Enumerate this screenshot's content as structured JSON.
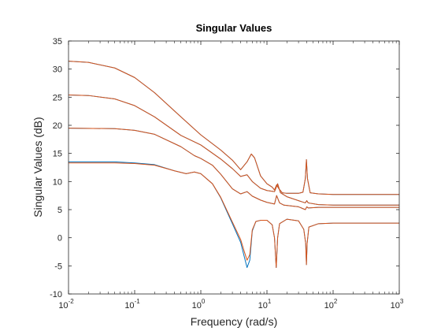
{
  "chart_data": {
    "type": "line",
    "title": "Singular Values",
    "xlabel": "Frequency (rad/s)",
    "ylabel": "Singular Values (dB)",
    "x_scale": "log",
    "xlim": [
      0.01,
      1000
    ],
    "ylim": [
      -10,
      35
    ],
    "x_ticks": [
      {
        "base": "10",
        "exp": "-2"
      },
      {
        "base": "10",
        "exp": "-1"
      },
      {
        "base": "10",
        "exp": "0"
      },
      {
        "base": "10",
        "exp": "1"
      },
      {
        "base": "10",
        "exp": "2"
      },
      {
        "base": "10",
        "exp": "3"
      }
    ],
    "y_ticks": [
      "-10",
      "-5",
      "0",
      "5",
      "10",
      "15",
      "20",
      "25",
      "30",
      "35"
    ],
    "grid": false,
    "box": true,
    "colors": {
      "series_a": "#0072BD",
      "series_b": "#D95319",
      "axis": "#262626",
      "title": "#000000"
    },
    "series": [
      {
        "color": "#0072BD",
        "curves": [
          [
            [
              0.01,
              31.4
            ],
            [
              0.02,
              31.2
            ],
            [
              0.05,
              30.2
            ],
            [
              0.1,
              28.5
            ],
            [
              0.2,
              25.8
            ],
            [
              0.5,
              21.5
            ],
            [
              1,
              18.3
            ],
            [
              2,
              15.6
            ],
            [
              3,
              13.8
            ],
            [
              4,
              12.1
            ],
            [
              5,
              13.5
            ],
            [
              5.8,
              14.9
            ],
            [
              6.5,
              14.2
            ],
            [
              8,
              11.0
            ],
            [
              10,
              9.6
            ],
            [
              12,
              9.0
            ],
            [
              13,
              8.5
            ],
            [
              14,
              9.4
            ],
            [
              15,
              8.8
            ],
            [
              17,
              8.0
            ],
            [
              20,
              7.9
            ],
            [
              30,
              7.9
            ],
            [
              35,
              8.1
            ],
            [
              38,
              10.5
            ],
            [
              39.5,
              13.9
            ],
            [
              41,
              10.5
            ],
            [
              45,
              8.0
            ],
            [
              60,
              7.8
            ],
            [
              100,
              7.7
            ],
            [
              1000,
              7.7
            ]
          ],
          [
            [
              0.01,
              25.4
            ],
            [
              0.02,
              25.3
            ],
            [
              0.05,
              24.7
            ],
            [
              0.1,
              23.5
            ],
            [
              0.2,
              21.5
            ],
            [
              0.5,
              18.2
            ],
            [
              1,
              16.5
            ],
            [
              2,
              14.0
            ],
            [
              3,
              12.3
            ],
            [
              4,
              10.9
            ],
            [
              5,
              11.2
            ],
            [
              6,
              10.0
            ],
            [
              8,
              8.8
            ],
            [
              10,
              8.4
            ],
            [
              13,
              8.2
            ],
            [
              14.5,
              9.6
            ],
            [
              16,
              8.0
            ],
            [
              20,
              7.3
            ],
            [
              30,
              6.6
            ],
            [
              38,
              6.2
            ],
            [
              40,
              6.6
            ],
            [
              42,
              6.2
            ],
            [
              60,
              5.9
            ],
            [
              100,
              5.8
            ],
            [
              1000,
              5.8
            ]
          ],
          [
            [
              0.01,
              19.5
            ],
            [
              0.05,
              19.4
            ],
            [
              0.1,
              19.1
            ],
            [
              0.2,
              18.4
            ],
            [
              0.5,
              16.2
            ],
            [
              0.8,
              14.6
            ],
            [
              1,
              14.1
            ],
            [
              1.5,
              12.9
            ],
            [
              2,
              11.3
            ],
            [
              3,
              8.7
            ],
            [
              4,
              7.8
            ],
            [
              5,
              8.2
            ],
            [
              6,
              7.4
            ],
            [
              8,
              6.7
            ],
            [
              10,
              6.3
            ],
            [
              13,
              6.0
            ],
            [
              14,
              7.5
            ],
            [
              15.5,
              6.2
            ],
            [
              18,
              5.8
            ],
            [
              30,
              5.5
            ],
            [
              38,
              5.0
            ],
            [
              40,
              5.5
            ],
            [
              42,
              5.3
            ],
            [
              60,
              5.4
            ],
            [
              100,
              5.4
            ],
            [
              1000,
              5.4
            ]
          ],
          [
            [
              0.01,
              13.5
            ],
            [
              0.05,
              13.5
            ],
            [
              0.1,
              13.3
            ],
            [
              0.2,
              13.0
            ],
            [
              0.4,
              11.9
            ],
            [
              0.6,
              11.4
            ],
            [
              0.8,
              11.7
            ],
            [
              1,
              11.4
            ],
            [
              1.5,
              9.6
            ],
            [
              2,
              7.1
            ],
            [
              3,
              2.5
            ],
            [
              4,
              -0.8
            ],
            [
              4.5,
              -3.2
            ],
            [
              5,
              -5.3
            ],
            [
              5.5,
              -4.0
            ],
            [
              6,
              1.2
            ],
            [
              6.8,
              2.9
            ],
            [
              8,
              3.1
            ],
            [
              10,
              3.1
            ],
            [
              12,
              2.3
            ],
            [
              13,
              0.0
            ],
            [
              13.8,
              -5.3
            ],
            [
              14.5,
              0.0
            ],
            [
              15.5,
              2.5
            ],
            [
              20,
              3.3
            ],
            [
              30,
              3.0
            ],
            [
              36,
              1.5
            ],
            [
              38.5,
              -1.0
            ],
            [
              39.5,
              -4.8
            ],
            [
              40.5,
              -1.0
            ],
            [
              43,
              1.9
            ],
            [
              60,
              2.5
            ],
            [
              100,
              2.6
            ],
            [
              1000,
              2.6
            ]
          ]
        ]
      },
      {
        "color": "#D95319",
        "curves": [
          [
            [
              0.01,
              31.4
            ],
            [
              0.02,
              31.2
            ],
            [
              0.05,
              30.2
            ],
            [
              0.1,
              28.5
            ],
            [
              0.2,
              25.8
            ],
            [
              0.5,
              21.5
            ],
            [
              1,
              18.3
            ],
            [
              2,
              15.6
            ],
            [
              3,
              13.8
            ],
            [
              4,
              12.1
            ],
            [
              5,
              13.5
            ],
            [
              5.8,
              14.9
            ],
            [
              6.5,
              14.2
            ],
            [
              8,
              11.0
            ],
            [
              10,
              9.6
            ],
            [
              12,
              9.0
            ],
            [
              13,
              8.5
            ],
            [
              14,
              9.4
            ],
            [
              15,
              8.8
            ],
            [
              17,
              8.0
            ],
            [
              20,
              7.9
            ],
            [
              30,
              7.9
            ],
            [
              35,
              8.1
            ],
            [
              38,
              10.5
            ],
            [
              39.5,
              13.9
            ],
            [
              41,
              10.5
            ],
            [
              45,
              8.0
            ],
            [
              60,
              7.8
            ],
            [
              100,
              7.7
            ],
            [
              1000,
              7.7
            ]
          ],
          [
            [
              0.01,
              25.4
            ],
            [
              0.02,
              25.3
            ],
            [
              0.05,
              24.7
            ],
            [
              0.1,
              23.5
            ],
            [
              0.2,
              21.5
            ],
            [
              0.5,
              18.2
            ],
            [
              1,
              16.5
            ],
            [
              2,
              14.0
            ],
            [
              3,
              12.3
            ],
            [
              4,
              10.9
            ],
            [
              5,
              11.2
            ],
            [
              6,
              10.0
            ],
            [
              8,
              8.8
            ],
            [
              10,
              8.4
            ],
            [
              13,
              8.2
            ],
            [
              14.5,
              9.6
            ],
            [
              16,
              8.0
            ],
            [
              20,
              7.3
            ],
            [
              30,
              6.6
            ],
            [
              38,
              6.2
            ],
            [
              40,
              6.6
            ],
            [
              42,
              6.2
            ],
            [
              60,
              5.9
            ],
            [
              100,
              5.8
            ],
            [
              1000,
              5.8
            ]
          ],
          [
            [
              0.01,
              19.5
            ],
            [
              0.05,
              19.4
            ],
            [
              0.1,
              19.1
            ],
            [
              0.2,
              18.4
            ],
            [
              0.5,
              16.2
            ],
            [
              0.8,
              14.6
            ],
            [
              1,
              14.1
            ],
            [
              1.5,
              12.9
            ],
            [
              2,
              11.3
            ],
            [
              3,
              8.7
            ],
            [
              4,
              7.8
            ],
            [
              5,
              8.2
            ],
            [
              6,
              7.4
            ],
            [
              8,
              6.7
            ],
            [
              10,
              6.3
            ],
            [
              13,
              6.0
            ],
            [
              14,
              7.5
            ],
            [
              15.5,
              6.2
            ],
            [
              18,
              5.8
            ],
            [
              30,
              5.5
            ],
            [
              38,
              5.0
            ],
            [
              40,
              5.5
            ],
            [
              42,
              5.3
            ],
            [
              60,
              5.4
            ],
            [
              100,
              5.4
            ],
            [
              1000,
              5.4
            ]
          ],
          [
            [
              0.01,
              13.3
            ],
            [
              0.05,
              13.3
            ],
            [
              0.1,
              13.2
            ],
            [
              0.2,
              12.9
            ],
            [
              0.4,
              11.9
            ],
            [
              0.6,
              11.4
            ],
            [
              0.8,
              11.7
            ],
            [
              1,
              11.4
            ],
            [
              1.5,
              9.6
            ],
            [
              2,
              7.2
            ],
            [
              3,
              2.8
            ],
            [
              4,
              -0.3
            ],
            [
              4.5,
              -2.3
            ],
            [
              5,
              -4.0
            ],
            [
              5.5,
              -3.0
            ],
            [
              6,
              1.4
            ],
            [
              6.8,
              2.9
            ],
            [
              8,
              3.1
            ],
            [
              10,
              3.1
            ],
            [
              12,
              2.3
            ],
            [
              13,
              0.0
            ],
            [
              13.8,
              -5.3
            ],
            [
              14.5,
              0.0
            ],
            [
              15.5,
              2.5
            ],
            [
              20,
              3.3
            ],
            [
              30,
              3.0
            ],
            [
              36,
              1.5
            ],
            [
              38.5,
              -1.0
            ],
            [
              39.5,
              -4.8
            ],
            [
              40.5,
              -1.0
            ],
            [
              43,
              1.9
            ],
            [
              60,
              2.5
            ],
            [
              100,
              2.6
            ],
            [
              1000,
              2.6
            ]
          ]
        ]
      }
    ]
  }
}
